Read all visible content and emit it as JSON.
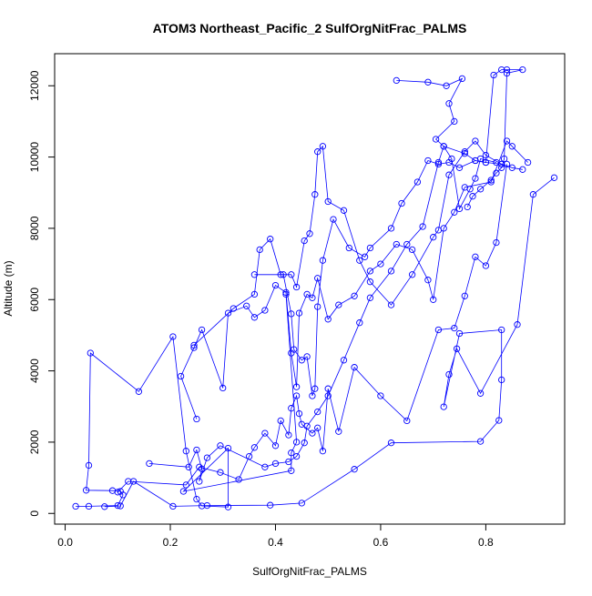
{
  "chart_data": {
    "type": "line",
    "title": "ATOM3 Northeast_Pacific_2 SulfOrgNitFrac_PALMS",
    "xlabel": "SulfOrgNitFrac_PALMS",
    "ylabel": "Altitude (m)",
    "xlim": [
      -0.02,
      0.95
    ],
    "ylim": [
      -300,
      12900
    ],
    "x_ticks": [
      0.0,
      0.2,
      0.4,
      0.6,
      0.8
    ],
    "x_tick_labels": [
      "0.0",
      "0.2",
      "0.4",
      "0.6",
      "0.8"
    ],
    "y_ticks": [
      0,
      2000,
      4000,
      6000,
      8000,
      10000,
      12000
    ],
    "y_tick_labels": [
      "0",
      "2000",
      "4000",
      "6000",
      "8000",
      "10000",
      "12000"
    ],
    "grid": false,
    "legend": "none",
    "color": "#0000ff",
    "marker": "open-circle",
    "series": [
      {
        "x": [
          0.02,
          0.045,
          0.1,
          0.11,
          0.105,
          0.09,
          0.04,
          0.045,
          0.048,
          0.14,
          0.205,
          0.23,
          0.25,
          0.26,
          0.31,
          0.31,
          0.225,
          0.43,
          0.43,
          0.44,
          0.42
        ],
        "y": [
          200,
          200,
          220,
          520,
          620,
          640,
          650,
          1350,
          4500,
          3420,
          4960,
          1750,
          400,
          210,
          180,
          1830,
          620,
          1200,
          1700,
          2000,
          6150
        ]
      },
      {
        "x": [
          0.075,
          0.105,
          0.13,
          0.205,
          0.27,
          0.39,
          0.45,
          0.55,
          0.62,
          0.79,
          0.825,
          0.83,
          0.83,
          0.75,
          0.72,
          0.73,
          0.745,
          0.79,
          0.86,
          0.89,
          0.93
        ],
        "y": [
          190,
          210,
          900,
          200,
          220,
          230,
          290,
          1240,
          1980,
          2020,
          2610,
          3750,
          5150,
          5050,
          2990,
          3900,
          4620,
          3370,
          5300,
          8950,
          9420
        ]
      },
      {
        "x": [
          0.1,
          0.12,
          0.23,
          0.255,
          0.295,
          0.33,
          0.35,
          0.36,
          0.38,
          0.4,
          0.41,
          0.425,
          0.43,
          0.44,
          0.445,
          0.45,
          0.47,
          0.48,
          0.49,
          0.5,
          0.52,
          0.55,
          0.6,
          0.65,
          0.71,
          0.74,
          0.76,
          0.78,
          0.8,
          0.82,
          0.84
        ],
        "y": [
          600,
          900,
          800,
          1300,
          1150,
          950,
          1600,
          1850,
          2250,
          1900,
          2600,
          2200,
          2950,
          3300,
          2800,
          2500,
          2250,
          2400,
          1750,
          3500,
          2300,
          4100,
          3300,
          2600,
          5150,
          5200,
          6100,
          7200,
          6950,
          7600,
          9800
        ]
      },
      {
        "x": [
          0.16,
          0.235,
          0.25,
          0.26,
          0.255,
          0.27,
          0.295,
          0.38,
          0.4,
          0.425,
          0.44,
          0.455,
          0.46,
          0.48,
          0.5,
          0.53,
          0.56,
          0.58,
          0.62,
          0.65,
          0.68,
          0.71,
          0.72,
          0.735,
          0.75,
          0.77,
          0.78,
          0.79,
          0.82
        ],
        "y": [
          1400,
          1300,
          1780,
          1250,
          900,
          1560,
          1900,
          1300,
          1400,
          1450,
          1600,
          1980,
          2450,
          2850,
          3300,
          4300,
          5350,
          6050,
          6800,
          7550,
          8050,
          9850,
          10300,
          9950,
          8550,
          9100,
          9400,
          9950,
          9850
        ]
      },
      {
        "x": [
          0.25,
          0.22,
          0.245,
          0.26,
          0.3,
          0.31,
          0.345,
          0.36,
          0.38,
          0.4,
          0.42,
          0.43,
          0.44,
          0.445,
          0.46,
          0.47,
          0.48,
          0.5,
          0.52,
          0.55,
          0.58,
          0.6,
          0.63,
          0.66,
          0.69,
          0.7,
          0.72,
          0.74,
          0.76,
          0.81,
          0.84,
          0.85,
          0.88
        ],
        "y": [
          2650,
          3850,
          4650,
          5150,
          3520,
          5620,
          5820,
          5500,
          5700,
          6400,
          6200,
          4500,
          3550,
          5620,
          6150,
          6050,
          6600,
          5450,
          5850,
          6100,
          6800,
          7000,
          7550,
          7400,
          6550,
          6000,
          8000,
          8450,
          9150,
          9300,
          10450,
          10300,
          9850
        ]
      },
      {
        "x": [
          0.245,
          0.32,
          0.36,
          0.37,
          0.39,
          0.41,
          0.415,
          0.43,
          0.435,
          0.45,
          0.46,
          0.47,
          0.475,
          0.48,
          0.49,
          0.51,
          0.54,
          0.57,
          0.58,
          0.62,
          0.64,
          0.67,
          0.69,
          0.71,
          0.73,
          0.75,
          0.78,
          0.8,
          0.83,
          0.85,
          0.87
        ],
        "y": [
          4720,
          5750,
          6150,
          7400,
          7700,
          6700,
          6700,
          5600,
          4600,
          4300,
          4400,
          3300,
          3500,
          5800,
          7100,
          8250,
          7450,
          7200,
          7450,
          8000,
          8700,
          9300,
          9900,
          9800,
          9850,
          9700,
          9900,
          9850,
          9800,
          9700,
          9650
        ]
      },
      {
        "x": [
          0.36,
          0.43,
          0.44,
          0.455,
          0.465,
          0.475,
          0.48,
          0.49,
          0.5,
          0.53,
          0.56,
          0.58,
          0.62,
          0.66,
          0.7,
          0.71,
          0.73,
          0.76,
          0.78,
          0.8,
          0.83
        ],
        "y": [
          6700,
          6700,
          6350,
          7650,
          7850,
          8950,
          10150,
          10300,
          8750,
          8500,
          7100,
          6500,
          5850,
          6700,
          7750,
          7950,
          9500,
          10150,
          10450,
          10050,
          9800
        ]
      },
      {
        "x": [
          0.63,
          0.69,
          0.725,
          0.755,
          0.73,
          0.74,
          0.705,
          0.72,
          0.76,
          0.78,
          0.8,
          0.815,
          0.83,
          0.84,
          0.87,
          0.84,
          0.835,
          0.83,
          0.82,
          0.81,
          0.79,
          0.775,
          0.765
        ],
        "y": [
          12150,
          12100,
          12000,
          12200,
          11500,
          11000,
          10500,
          10300,
          10100,
          9900,
          9850,
          12300,
          12450,
          12450,
          12450,
          12350,
          9950,
          9700,
          9550,
          9350,
          9100,
          8900,
          8600
        ]
      }
    ]
  }
}
